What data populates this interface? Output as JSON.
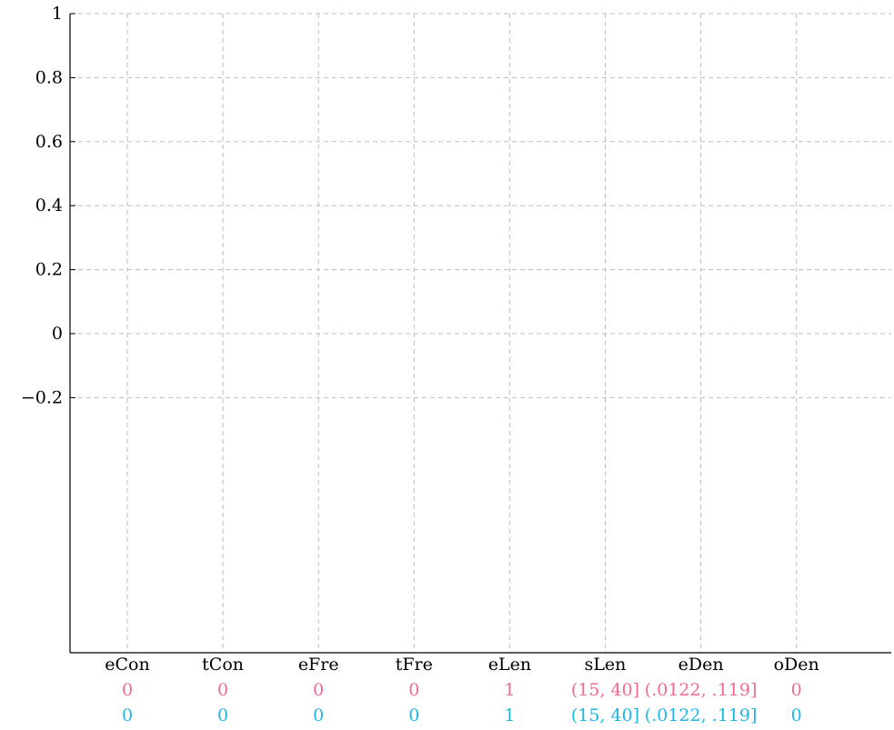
{
  "chart_data": {
    "type": "bar",
    "title": "",
    "xlabel": "",
    "ylabel": "",
    "ylim": [
      -0.2,
      1
    ],
    "yticks": [
      1,
      0.8,
      0.6,
      0.4,
      0.2,
      0,
      -0.2
    ],
    "ytick_labels": [
      "1",
      "0.8",
      "0.6",
      "0.4",
      "0.2",
      "0",
      "−0.2"
    ],
    "grid": true,
    "categories": [
      "eCon",
      "tCon",
      "eFre",
      "tFre",
      "eLen",
      "sLen",
      "eDen",
      "oDen"
    ],
    "rows": [
      {
        "color": "#f06b8f",
        "values": [
          "0",
          "0",
          "0",
          "0",
          "1",
          "(15, 40]",
          "(.0122, .119]",
          "0"
        ]
      },
      {
        "color": "#1fb6e6",
        "values": [
          "0",
          "0",
          "0",
          "0",
          "1",
          "(15, 40]",
          "(.0122, .119]",
          "0"
        ]
      }
    ]
  }
}
